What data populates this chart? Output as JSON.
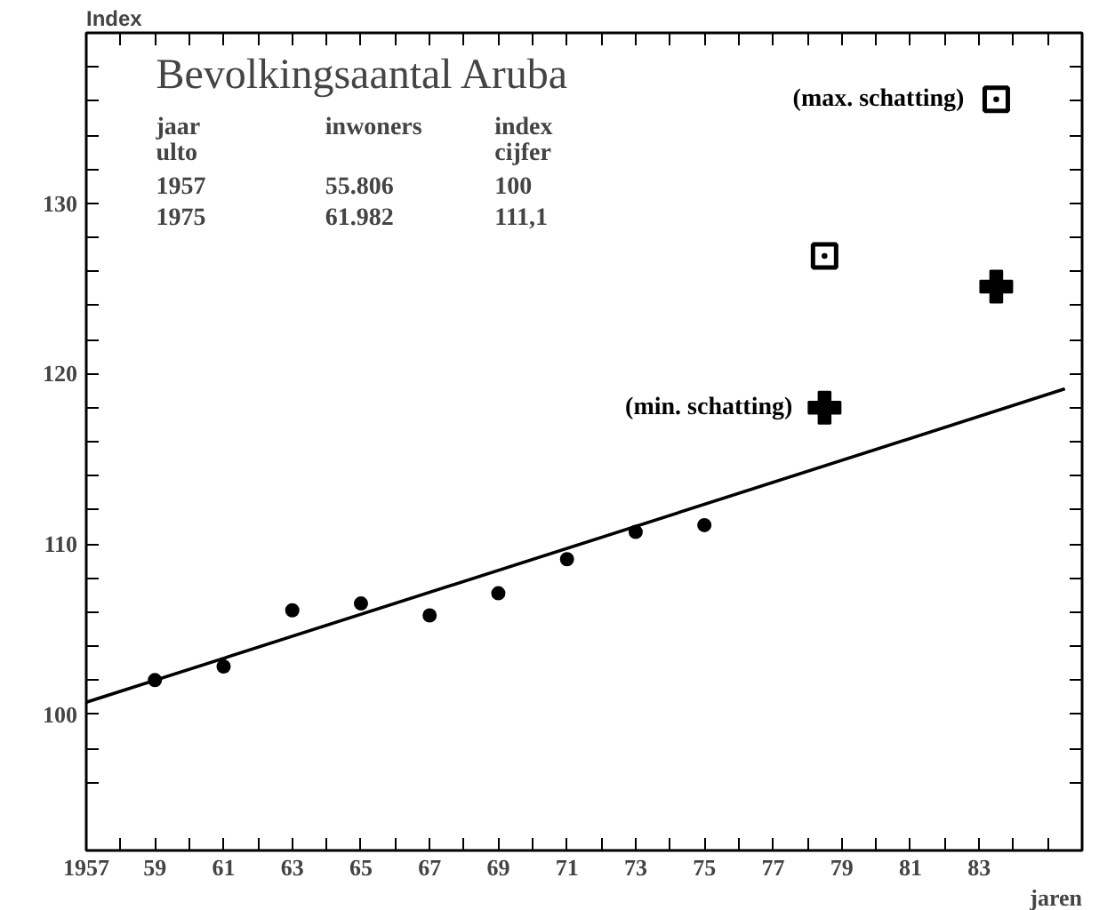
{
  "chart_data": {
    "type": "scatter",
    "title": "Bevolkingsaantal Aruba",
    "xlabel": "jaren",
    "ylabel": "Index",
    "annotations": [
      "jaar\nulto",
      "inwoners",
      "index\ncijfer",
      "1957",
      "55.806",
      "100",
      "1975",
      "61.982",
      "111,1"
    ],
    "series": [
      {
        "color": "#000000",
        "marker": "circle",
        "x": [
          1959,
          1961,
          1963,
          1965,
          1967,
          1969,
          1971,
          1973,
          1975
        ],
        "values": [
          102.0,
          102.8,
          106.1,
          106.5,
          105.8,
          107.1,
          109.1,
          110.7,
          111.1
        ]
      },
      {
        "type": "line",
        "color": "#000000",
        "x": [
          1957,
          1985.5
        ],
        "values": [
          100.7,
          119.1
        ]
      },
      {
        "name": "(min. schatting)",
        "color": "#000000",
        "marker": "cross",
        "x": [
          1978.5,
          1983.5
        ],
        "values": [
          118.0,
          125.1
        ]
      },
      {
        "name": "(max. schatting)",
        "color": "#000000",
        "marker": "square",
        "x": [
          1978.5,
          1983.5
        ],
        "values": [
          126.9,
          136.1
        ]
      }
    ],
    "xlim": [
      1957,
      1986
    ],
    "ylim": [
      92,
      140
    ],
    "xticks": [
      1957,
      {
        "value": 1958,
        "label": null
      },
      {
        "value": 1959,
        "label": "59"
      },
      {
        "value": 1960,
        "label": null
      },
      {
        "value": 1961,
        "label": "61"
      },
      {
        "value": 1962,
        "label": null
      },
      {
        "value": 1963,
        "label": "63"
      },
      {
        "value": 1964,
        "label": null
      },
      {
        "value": 1965,
        "label": "65"
      },
      {
        "value": 1966,
        "label": null
      },
      {
        "value": 1967,
        "label": "67"
      },
      {
        "value": 1968,
        "label": null
      },
      {
        "value": 1969,
        "label": "69"
      },
      {
        "value": 1970,
        "label": null
      },
      {
        "value": 1971,
        "label": "71"
      },
      {
        "value": 1972,
        "label": null
      },
      {
        "value": 1973,
        "label": "73"
      },
      {
        "value": 1974,
        "label": null
      },
      {
        "value": 1975,
        "label": "75"
      },
      {
        "value": 1976,
        "label": null
      },
      {
        "value": 1977,
        "label": "77"
      },
      {
        "value": 1978,
        "label": null
      },
      {
        "value": 1979,
        "label": "79"
      },
      {
        "value": 1980,
        "label": null
      },
      {
        "value": 1981,
        "label": "81"
      },
      {
        "value": 1982,
        "label": null
      },
      {
        "value": 1983,
        "label": "83"
      },
      {
        "value": 1984,
        "label": null
      },
      {
        "value": 1985,
        "label": null
      }
    ],
    "yticks": [
      {
        "value": 96,
        "label": null
      },
      {
        "value": 98,
        "label": null
      },
      100,
      {
        "value": 102,
        "label": null
      },
      {
        "value": 104,
        "label": null
      },
      {
        "value": 106,
        "label": null
      },
      {
        "value": 108,
        "label": null
      },
      110,
      {
        "value": 112,
        "label": null
      },
      {
        "value": 114,
        "label": null
      },
      {
        "value": 116,
        "label": null
      },
      {
        "value": 118,
        "label": null
      },
      120,
      {
        "value": 122,
        "label": null
      },
      {
        "value": 124,
        "label": null
      },
      {
        "value": 126,
        "label": null
      },
      {
        "value": 128,
        "label": null
      },
      130,
      {
        "value": 132,
        "label": null
      },
      {
        "value": 134,
        "label": null
      },
      {
        "value": 136,
        "label": null
      },
      {
        "value": 138,
        "label": null
      }
    ],
    "grid": false
  }
}
